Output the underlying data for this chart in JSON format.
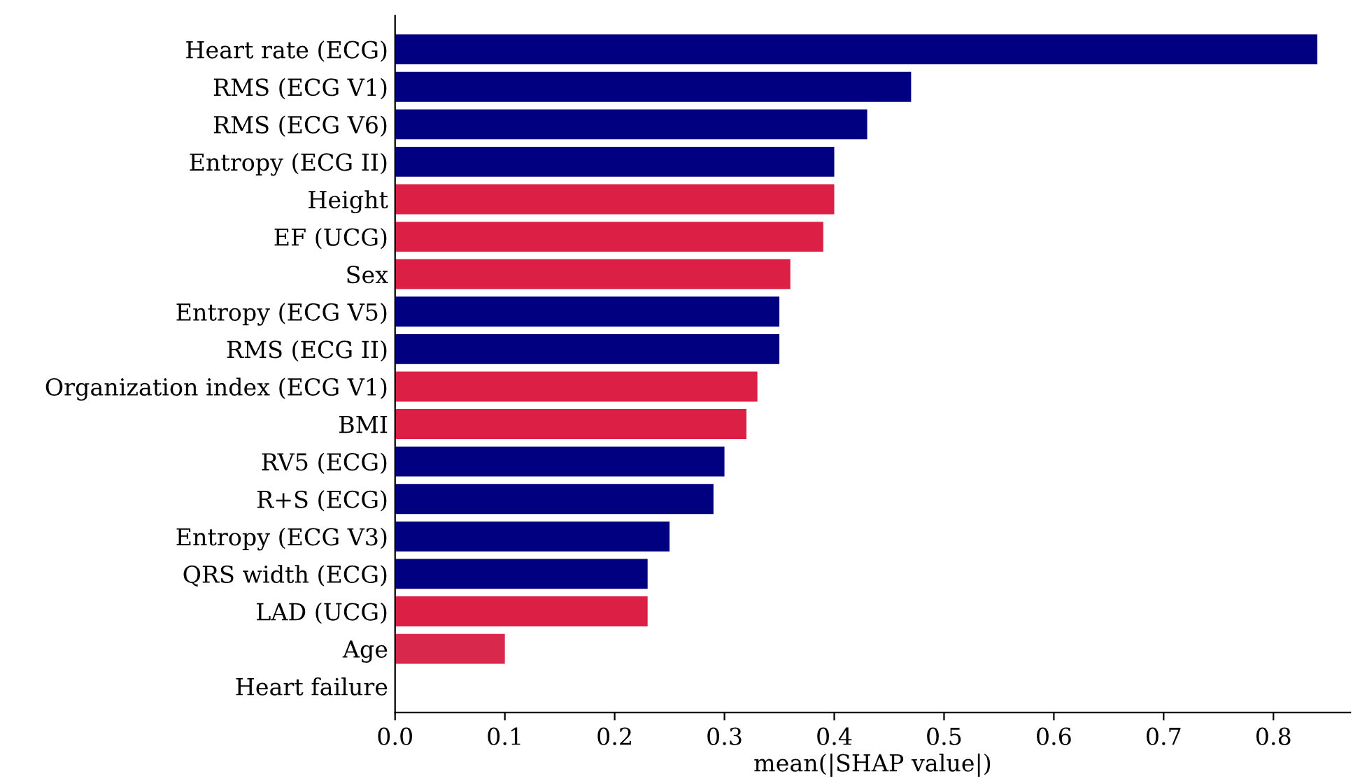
{
  "chart_data": {
    "type": "bar",
    "orientation": "horizontal",
    "xlabel": "mean(|SHAP value|)",
    "categories": [
      "Heart rate (ECG)",
      "RMS (ECG V1)",
      "RMS (ECG V6)",
      "Entropy (ECG II)",
      "Height",
      "EF (UCG)",
      "Sex",
      "Entropy (ECG V5)",
      "RMS (ECG II)",
      "Organization index (ECG V1)",
      "BMI",
      "RV5 (ECG)",
      "R+S (ECG)",
      "Entropy (ECG V3)",
      "QRS width (ECG)",
      "LAD (UCG)",
      "Age",
      "Heart failure"
    ],
    "values": [
      0.84,
      0.47,
      0.43,
      0.4,
      0.4,
      0.39,
      0.36,
      0.35,
      0.35,
      0.33,
      0.32,
      0.3,
      0.29,
      0.25,
      0.23,
      0.23,
      0.1,
      0.0
    ],
    "colors": [
      "#000080",
      "#000080",
      "#000080",
      "#000080",
      "#dc1f44",
      "#dc1f44",
      "#dc1f44",
      "#000080",
      "#000080",
      "#dc1f44",
      "#dc1f44",
      "#000080",
      "#000080",
      "#000080",
      "#000080",
      "#dc1f44",
      "#d8294c",
      "#dc1f44"
    ],
    "xlim": [
      0,
      0.87
    ],
    "xticks": [
      {
        "value": 0,
        "label": "0.0"
      },
      0.1,
      0.2,
      0.3,
      0.4,
      0.5,
      0.6,
      0.7,
      0.8
    ],
    "grid": false,
    "legend": false
  }
}
